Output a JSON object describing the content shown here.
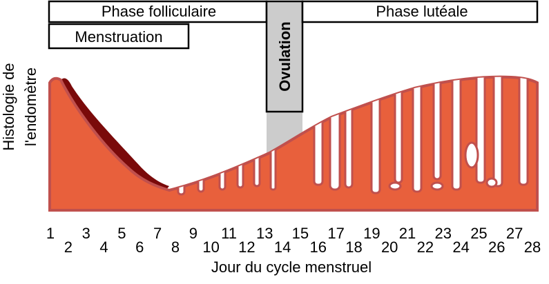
{
  "phases": {
    "follicular": "Phase folliculaire",
    "menstruation": "Menstruation",
    "ovulation": "Ovulation",
    "luteal": "Phase lutéale"
  },
  "y_label": [
    "Histologie de",
    "l'endomètre"
  ],
  "x_label": "Jour du cycle menstruel",
  "days": [
    1,
    2,
    3,
    4,
    5,
    6,
    7,
    8,
    9,
    10,
    11,
    12,
    13,
    14,
    15,
    16,
    17,
    18,
    19,
    20,
    21,
    22,
    23,
    24,
    25,
    26,
    27,
    28
  ]
}
